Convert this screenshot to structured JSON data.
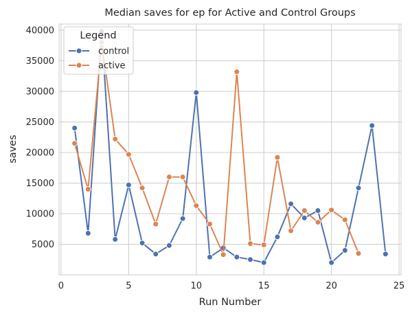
{
  "chart_data": {
    "type": "line",
    "title": "Median saves for ep for Active and Control Groups",
    "xlabel": "Run Number",
    "ylabel": "saves",
    "xlim": [
      -0.15,
      25.15
    ],
    "ylim": [
      0,
      41000
    ],
    "xticks": [
      0,
      5,
      10,
      15,
      20,
      25
    ],
    "yticks": [
      5000,
      10000,
      15000,
      20000,
      25000,
      30000,
      35000,
      40000
    ],
    "grid": true,
    "legend": {
      "title": "Legend",
      "placement": "top-left"
    },
    "series": [
      {
        "name": "control",
        "color": "#4c72b0",
        "x": [
          1,
          2,
          3,
          4,
          5,
          6,
          7,
          8,
          9,
          10,
          11,
          12,
          13,
          14,
          15,
          16,
          17,
          18,
          19,
          20,
          21,
          22,
          23,
          24
        ],
        "y": [
          24000,
          6800,
          39800,
          5800,
          14700,
          5200,
          3400,
          4800,
          9200,
          29800,
          2900,
          4400,
          2900,
          2500,
          2000,
          6200,
          11600,
          9300,
          10500,
          2000,
          4000,
          14200,
          24400,
          3400
        ]
      },
      {
        "name": "active",
        "color": "#dd8452",
        "x": [
          1,
          2,
          3,
          4,
          5,
          6,
          7,
          8,
          9,
          10,
          11,
          12,
          13,
          14,
          15,
          16,
          17,
          18,
          19,
          20,
          21,
          22
        ],
        "y": [
          21500,
          14000,
          38000,
          22200,
          19700,
          14200,
          8300,
          16000,
          16000,
          11300,
          8300,
          3300,
          33200,
          5100,
          4900,
          19200,
          7200,
          10500,
          8600,
          10600,
          9000,
          3500
        ]
      }
    ]
  }
}
